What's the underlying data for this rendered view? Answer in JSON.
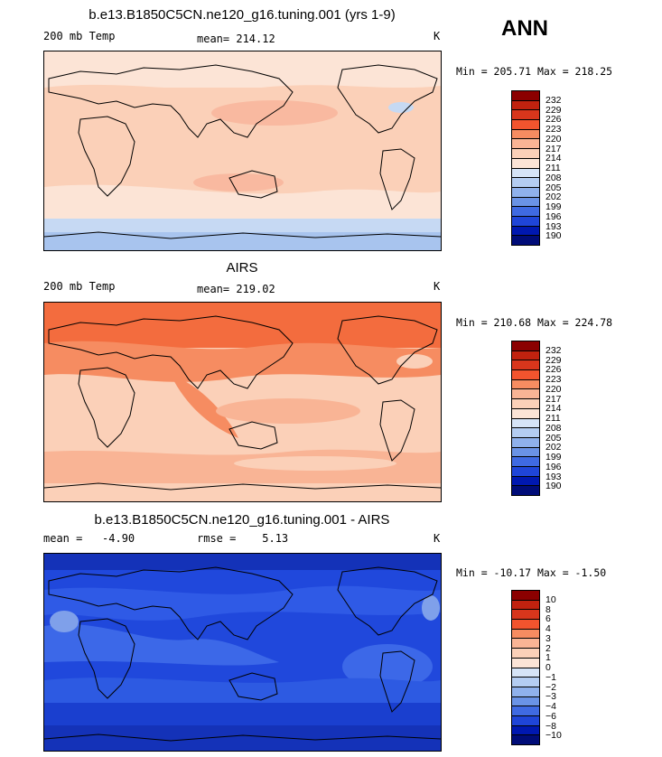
{
  "season": "ANN",
  "panels": [
    {
      "title": "b.e13.B1850C5CN.ne120_g16.tuning.001 (yrs 1-9)",
      "left_label": "200 mb Temp",
      "center_label": "mean= 214.12",
      "unit": "K",
      "minmax": "Min = 205.71 Max = 218.25",
      "colorbar_labels": [
        "232",
        "229",
        "226",
        "223",
        "220",
        "217",
        "214",
        "211",
        "208",
        "205",
        "202",
        "199",
        "196",
        "193",
        "190"
      ],
      "background": "#fbd0b8",
      "bands": [
        {
          "color": "#fce4d6"
        },
        {
          "color": "#fbd0b8"
        },
        {
          "color": "#f9b9a0"
        },
        {
          "color": "#fce4d6"
        },
        {
          "color": "#c6d9f3"
        },
        {
          "color": "#a8c4ee"
        }
      ]
    },
    {
      "title": "AIRS",
      "left_label": "200 mb Temp",
      "center_label": "mean= 219.02",
      "unit": "K",
      "minmax": "Min = 210.68 Max = 224.78",
      "colorbar_labels": [
        "232",
        "229",
        "226",
        "223",
        "220",
        "217",
        "214",
        "211",
        "208",
        "205",
        "202",
        "199",
        "196",
        "193",
        "190"
      ],
      "background": "#fbd0b8",
      "bands": [
        {
          "color": "#f36c3e"
        },
        {
          "color": "#f68c61"
        },
        {
          "color": "#f9b495"
        },
        {
          "color": "#fbd0b8"
        },
        {
          "color": "#f9b495"
        },
        {
          "color": "#fbd0b8"
        }
      ]
    },
    {
      "title": "b.e13.B1850C5CN.ne120_g16.tuning.001 - AIRS",
      "left_label": "mean =   -4.90",
      "center_label": "rmse =    5.13",
      "unit": "K",
      "minmax": "Min = -10.17 Max =  -1.50",
      "colorbar_labels": [
        "10",
        "8",
        "6",
        "4",
        "3",
        "2",
        "1",
        "0",
        "−1",
        "−2",
        "−3",
        "−4",
        "−6",
        "−8",
        "−10"
      ],
      "background": "#2048dc",
      "bands": [
        {
          "color": "#2f5ae6"
        },
        {
          "color": "#1a3fcf"
        },
        {
          "color": "#3c68e8"
        },
        {
          "color": "#2d5ae2"
        },
        {
          "color": "#1a3fcf"
        },
        {
          "color": "#1432b8"
        }
      ]
    }
  ],
  "colors": {
    "temp_scale": [
      "#8b0000",
      "#c1220f",
      "#d8361c",
      "#f2542e",
      "#f68c61",
      "#f9b495",
      "#fbd0b8",
      "#fce4d6",
      "#d6e4f7",
      "#b4cdf2",
      "#8fb1ec",
      "#6a93e6",
      "#3f6ae2",
      "#1f45d8",
      "#0018b0",
      "#000c78"
    ],
    "diff_scale": [
      "#8b0000",
      "#c1220f",
      "#d8361c",
      "#f2542e",
      "#f68c61",
      "#f9b495",
      "#fbd0b8",
      "#fce4d6",
      "#d6e4f7",
      "#b4cdf2",
      "#8fb1ec",
      "#6a93e6",
      "#3f6ae2",
      "#1f45d8",
      "#0018b0",
      "#000c78"
    ]
  }
}
